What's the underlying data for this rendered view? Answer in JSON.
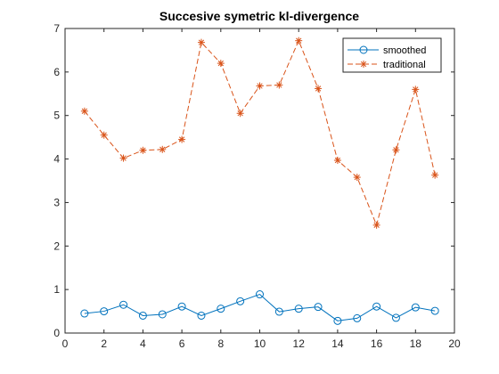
{
  "chart_data": {
    "type": "line",
    "title": "Succesive symetric kl-divergence",
    "xlabel": "",
    "ylabel": "",
    "xlim": [
      0,
      20
    ],
    "ylim": [
      0,
      7
    ],
    "xticks": [
      0,
      2,
      4,
      6,
      8,
      10,
      12,
      14,
      16,
      18,
      20
    ],
    "yticks": [
      0,
      1,
      2,
      3,
      4,
      5,
      6,
      7
    ],
    "grid": false,
    "legend_position": "top-right",
    "x": [
      1,
      2,
      3,
      4,
      5,
      6,
      7,
      8,
      9,
      10,
      11,
      12,
      13,
      14,
      15,
      16,
      17,
      18,
      19
    ],
    "series": [
      {
        "name": "smoothed",
        "color": "#0072BD",
        "line_style": "solid",
        "marker": "circle",
        "values": [
          0.45,
          0.5,
          0.65,
          0.4,
          0.43,
          0.61,
          0.4,
          0.56,
          0.73,
          0.89,
          0.49,
          0.56,
          0.6,
          0.28,
          0.34,
          0.61,
          0.35,
          0.59,
          0.51
        ]
      },
      {
        "name": "traditional",
        "color": "#D95319",
        "line_style": "dashed",
        "marker": "asterisk",
        "values": [
          5.1,
          4.55,
          4.02,
          4.2,
          4.22,
          4.45,
          6.68,
          6.2,
          5.05,
          5.68,
          5.7,
          6.72,
          5.62,
          3.97,
          3.58,
          2.48,
          4.21,
          5.6,
          3.63
        ]
      }
    ]
  }
}
